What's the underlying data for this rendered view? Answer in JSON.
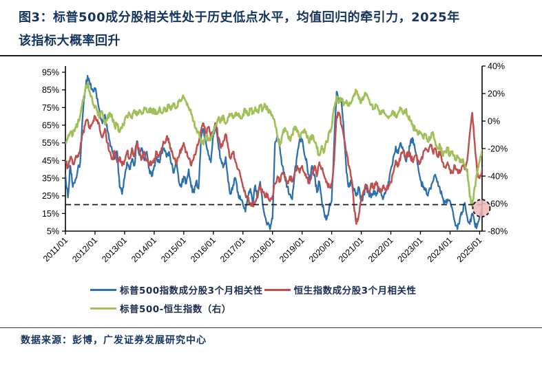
{
  "figure": {
    "title_line1": "图3：标普500成分股相关性处于历史低点水平，均值回归的牵引力，2025年",
    "title_line2": "该指标大概率回升"
  },
  "source": {
    "label": "数据来源：",
    "value": "彭博，广发证券发展研究中心"
  },
  "chart_data": {
    "type": "line",
    "x_frequency": "monthly",
    "x_start": "2011/01",
    "x_end": "2025/02",
    "x_tick_labels": [
      "2011/01",
      "2012/01",
      "2013/01",
      "2014/01",
      "2015/01",
      "2016/01",
      "2017/01",
      "2018/01",
      "2019/01",
      "2020/01",
      "2021/01",
      "2022/01",
      "2023/01",
      "2024/01",
      "2025/01"
    ],
    "axes": {
      "left": {
        "min": 5,
        "max": 95,
        "tick_values": [
          95,
          85,
          75,
          65,
          55,
          45,
          35,
          25,
          15,
          5
        ],
        "tick_labels": [
          "95%",
          "85%",
          "75%",
          "65%",
          "55%",
          "45%",
          "35%",
          "25%",
          "15%",
          "5%"
        ]
      },
      "right": {
        "min": -80,
        "max": 40,
        "tick_values": [
          40,
          20,
          0,
          -20,
          -40,
          -60,
          -80
        ],
        "tick_labels": [
          "40%",
          "20%",
          "0%",
          "-20%",
          "-40%",
          "-60%",
          "-80%"
        ]
      }
    },
    "mean_line": {
      "axis": "left",
      "value": 20,
      "style": "dashed"
    },
    "annotation": {
      "type": "dashed-circle",
      "x_label": "2025/01",
      "axis": "left",
      "value": 18,
      "fill": "#edb9b7"
    },
    "series": [
      {
        "name": "标普500指数成分股3个月相关性",
        "axis": "left",
        "color": "#2e6fad",
        "values": [
          37,
          24,
          42,
          30,
          34,
          40,
          44,
          70,
          85,
          93,
          88,
          85,
          86,
          80,
          72,
          66,
          71,
          62,
          56,
          50,
          46,
          50,
          30,
          26,
          35,
          44,
          40,
          46,
          42,
          56,
          48,
          52,
          45,
          50,
          40,
          36,
          42,
          47,
          44,
          49,
          52,
          47,
          50,
          43,
          38,
          45,
          33,
          30,
          36,
          32,
          40,
          30,
          27,
          33,
          29,
          58,
          63,
          55,
          48,
          44,
          60,
          64,
          54,
          46,
          41,
          47,
          33,
          26,
          31,
          35,
          27,
          23,
          20,
          16,
          24,
          29,
          21,
          31,
          24,
          33,
          20,
          13,
          9,
          6,
          12,
          55,
          59,
          52,
          42,
          36,
          30,
          26,
          23,
          38,
          48,
          57,
          57,
          48,
          43,
          34,
          42,
          37,
          27,
          33,
          22,
          15,
          12,
          18,
          22,
          55,
          84,
          80,
          78,
          60,
          38,
          30,
          33,
          28,
          25,
          30,
          22,
          26,
          30,
          27,
          24,
          28,
          25,
          30,
          27,
          24,
          28,
          33,
          40,
          47,
          53,
          49,
          55,
          51,
          45,
          48,
          56,
          57,
          50,
          42,
          34,
          30,
          28,
          25,
          29,
          33,
          37,
          33,
          28,
          24,
          21,
          23,
          22,
          17,
          10,
          6,
          12,
          16,
          21,
          13,
          9,
          15,
          9,
          8,
          13,
          18
        ]
      },
      {
        "name": "恒生指数成分股3个月相关性",
        "axis": "left",
        "color": "#c0504d",
        "values": [
          45,
          41,
          47,
          43,
          46,
          48,
          52,
          60,
          65,
          68,
          63,
          66,
          70,
          68,
          62,
          58,
          63,
          55,
          50,
          46,
          50,
          44,
          47,
          42,
          45,
          50,
          46,
          52,
          48,
          55,
          50,
          46,
          50,
          45,
          42,
          44,
          46,
          50,
          48,
          52,
          55,
          58,
          55,
          50,
          46,
          43,
          47,
          52,
          55,
          50,
          46,
          42,
          46,
          50,
          55,
          62,
          66,
          60,
          64,
          58,
          62,
          66,
          58,
          52,
          56,
          60,
          52,
          46,
          50,
          44,
          40,
          36,
          30,
          26,
          24,
          21,
          19,
          22,
          26,
          30,
          27,
          24,
          26,
          22,
          25,
          32,
          36,
          33,
          38,
          35,
          32,
          36,
          33,
          38,
          42,
          38,
          42,
          38,
          35,
          32,
          38,
          42,
          36,
          44,
          40,
          36,
          33,
          30,
          32,
          45,
          70,
          72,
          65,
          58,
          50,
          42,
          35,
          20,
          9,
          14,
          22,
          28,
          31,
          27,
          32,
          29,
          33,
          30,
          27,
          31,
          28,
          30,
          33,
          38,
          45,
          42,
          48,
          50,
          46,
          50,
          47,
          44,
          48,
          45,
          44,
          48,
          52,
          50,
          54,
          50,
          52,
          47,
          50,
          44,
          41,
          44,
          40,
          38,
          42,
          40,
          38,
          42,
          40,
          45,
          60,
          72,
          55,
          38,
          35,
          40
        ]
      },
      {
        "name": "标普500-恒生指数（右）",
        "axis": "right",
        "color": "#a2c05a",
        "values": [
          -16,
          -12,
          -8,
          -10,
          -5,
          -2,
          4,
          15,
          22,
          28,
          20,
          14,
          10,
          7,
          3,
          6,
          -2,
          2,
          6,
          2,
          -4,
          -2,
          -8,
          -5,
          0,
          3,
          5,
          2,
          8,
          4,
          8,
          5,
          10,
          7,
          9,
          6,
          8,
          5,
          9,
          6,
          10,
          8,
          12,
          9,
          13,
          10,
          14,
          15,
          17,
          14,
          10,
          5,
          0,
          -5,
          -8,
          -14,
          -17,
          -10,
          -14,
          -12,
          -8,
          -3,
          2,
          0,
          4,
          -2,
          3,
          5,
          2,
          6,
          4,
          2,
          5,
          8,
          4,
          9,
          6,
          10,
          7,
          11,
          8,
          12,
          9,
          7,
          4,
          -2,
          -12,
          -18,
          -10,
          -5,
          -8,
          -14,
          -10,
          -4,
          -8,
          -12,
          -8,
          -6,
          -12,
          -16,
          -10,
          -15,
          -20,
          -25,
          -18,
          -22,
          -15,
          -8,
          -5,
          10,
          18,
          14,
          16,
          12,
          15,
          11,
          14,
          18,
          22,
          16,
          14,
          18,
          20,
          16,
          12,
          9,
          12,
          8,
          5,
          8,
          4,
          2,
          4,
          7,
          3,
          6,
          9,
          5,
          8,
          3,
          0,
          -4,
          -7,
          -10,
          -8,
          -12,
          -10,
          -15,
          -12,
          -8,
          -15,
          -20,
          -18,
          -25,
          -22,
          -20,
          -25,
          -22,
          -28,
          -25,
          -30,
          -28,
          -32,
          -35,
          -55,
          -62,
          -48,
          -38,
          -30,
          -21
        ]
      }
    ]
  }
}
